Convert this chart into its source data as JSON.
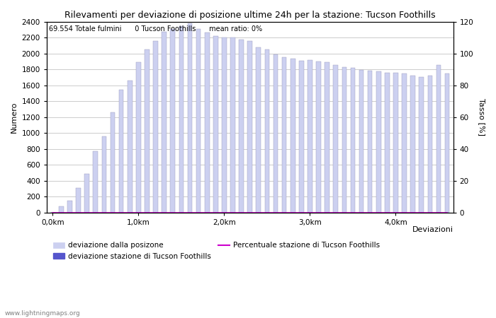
{
  "title": "Rilevamenti per deviazione di posizione ultime 24h per la stazione: Tucson Foothills",
  "xlabel": "Deviazioni",
  "ylabel_left": "Numero",
  "ylabel_right": "Tasso [%]",
  "annotation": "69.554 Totale fulmini      0 Tucson Foothills      mean ratio: 0%",
  "watermark": "www.lightningmaps.org",
  "xtick_labels": [
    "0,0km",
    "1,0km",
    "2,0km",
    "3,0km",
    "4,0km"
  ],
  "xtick_positions": [
    0,
    10,
    20,
    30,
    40
  ],
  "ylim_left": [
    0,
    2400
  ],
  "ylim_right": [
    0,
    120
  ],
  "yticks_left": [
    0,
    200,
    400,
    600,
    800,
    1000,
    1200,
    1400,
    1600,
    1800,
    2000,
    2200,
    2400
  ],
  "yticks_right": [
    0,
    20,
    40,
    60,
    80,
    100,
    120
  ],
  "bar_color_light": "#ccd0f0",
  "bar_color_dark": "#5555cc",
  "bar_edge_color": "#9999bb",
  "line_color": "#cc00cc",
  "legend_labels": [
    "deviazione dalla posizone",
    "deviazione stazione di Tucson Foothills",
    "Percentuale stazione di Tucson Foothills"
  ],
  "bar_values": [
    0,
    80,
    150,
    310,
    490,
    770,
    960,
    1260,
    1540,
    1660,
    1890,
    2050,
    2160,
    2270,
    2310,
    2340,
    2380,
    2310,
    2260,
    2220,
    2200,
    2200,
    2170,
    2160,
    2080,
    2050,
    1990,
    1950,
    1930,
    1910,
    1920,
    1900,
    1890,
    1850,
    1830,
    1820,
    1790,
    1780,
    1770,
    1760,
    1760,
    1750,
    1720,
    1700,
    1720,
    1850,
    1750
  ],
  "station_values": [
    0,
    0,
    0,
    0,
    0,
    0,
    0,
    0,
    0,
    0,
    0,
    0,
    0,
    0,
    0,
    0,
    0,
    0,
    0,
    0,
    0,
    0,
    0,
    0,
    0,
    0,
    0,
    0,
    0,
    0,
    0,
    0,
    0,
    0,
    0,
    0,
    0,
    0,
    0,
    0,
    0,
    0,
    0,
    0,
    0,
    0,
    0
  ],
  "ratio_values": [
    0,
    0,
    0,
    0,
    0,
    0,
    0,
    0,
    0,
    0,
    0,
    0,
    0,
    0,
    0,
    0,
    0,
    0,
    0,
    0,
    0,
    0,
    0,
    0,
    0,
    0,
    0,
    0,
    0,
    0,
    0,
    0,
    0,
    0,
    0,
    0,
    0,
    0,
    0,
    0,
    0,
    0,
    0,
    0,
    0,
    0,
    0
  ],
  "n_bars": 47,
  "background_color": "#ffffff",
  "grid_color": "#999999",
  "title_fontsize": 9,
  "label_fontsize": 8,
  "tick_fontsize": 7.5,
  "legend_fontsize": 7.5,
  "annotation_fontsize": 7
}
